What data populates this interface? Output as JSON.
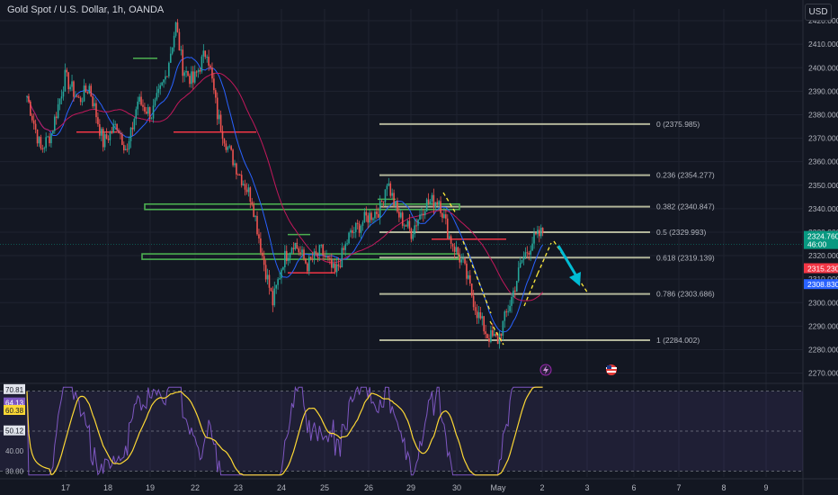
{
  "header": {
    "title": "Gold Spot / U.S. Dollar, 1h, OANDA",
    "currency": "USD"
  },
  "colors": {
    "background": "#131722",
    "grid": "#1f2330",
    "up": "#26a69a",
    "down": "#ef5350",
    "ma_blue": "#2962ff",
    "ma_red": "#c2185b",
    "fib": "#b2b59a",
    "zone": "#4caf50",
    "resistance": "#f23645",
    "rsi": "#7e57c2",
    "rsi_ma": "#fdd835",
    "projection": "#00bcd4"
  },
  "chart_data": [
    {
      "type": "candlestick",
      "title": "Gold Spot / U.S. Dollar, 1h, OANDA",
      "x_ticks": [
        "17",
        "18",
        "19",
        "22",
        "23",
        "24",
        "25",
        "26",
        "29",
        "30",
        "May",
        "2",
        "3",
        "6",
        "7",
        "8",
        "9"
      ],
      "y_ticks": [
        "2270.000",
        "2280.000",
        "2290.000",
        "2300.000",
        "2310.000",
        "2320.000",
        "2330.000",
        "2340.000",
        "2350.000",
        "2360.000",
        "2370.000",
        "2380.000",
        "2390.000",
        "2400.000",
        "2410.000",
        "2420.000"
      ],
      "ylim": [
        2266,
        2425
      ],
      "price_path": [
        [
          0,
          2388
        ],
        [
          8,
          2365
        ],
        [
          14,
          2372
        ],
        [
          22,
          2396
        ],
        [
          30,
          2386
        ],
        [
          36,
          2392
        ],
        [
          44,
          2368
        ],
        [
          52,
          2376
        ],
        [
          58,
          2364
        ],
        [
          64,
          2386
        ],
        [
          72,
          2380
        ],
        [
          80,
          2396
        ],
        [
          86,
          2418
        ],
        [
          90,
          2400
        ],
        [
          96,
          2394
        ],
        [
          104,
          2408
        ],
        [
          110,
          2380
        ],
        [
          116,
          2366
        ],
        [
          122,
          2356
        ],
        [
          130,
          2344
        ],
        [
          136,
          2320
        ],
        [
          142,
          2300
        ],
        [
          148,
          2318
        ],
        [
          154,
          2326
        ],
        [
          162,
          2316
        ],
        [
          170,
          2322
        ],
        [
          178,
          2312
        ],
        [
          186,
          2328
        ],
        [
          196,
          2336
        ],
        [
          204,
          2340
        ],
        [
          208,
          2352
        ],
        [
          214,
          2338
        ],
        [
          222,
          2330
        ],
        [
          230,
          2342
        ],
        [
          238,
          2344
        ],
        [
          244,
          2328
        ],
        [
          252,
          2316
        ],
        [
          260,
          2296
        ],
        [
          266,
          2286
        ],
        [
          272,
          2284
        ],
        [
          280,
          2302
        ],
        [
          286,
          2318
        ],
        [
          292,
          2326
        ],
        [
          298,
          2330
        ]
      ],
      "last_index": 298,
      "price_labels": [
        {
          "text": "2324.760",
          "sub": "46:00",
          "value": 2324.76,
          "color": "#089981"
        },
        {
          "text": "2315.230",
          "value": 2315.23,
          "color": "#f23645"
        },
        {
          "text": "2308.830",
          "value": 2308.83,
          "color": "#2962ff"
        }
      ],
      "fibonacci": [
        {
          "label": "0 (2375.985)",
          "value": 2375.985
        },
        {
          "label": "0.236 (2354.277)",
          "value": 2354.277
        },
        {
          "label": "0.382 (2340.847)",
          "value": 2340.847
        },
        {
          "label": "0.5 (2329.993)",
          "value": 2329.993
        },
        {
          "label": "0.618 (2319.139)",
          "value": 2319.139
        },
        {
          "label": "0.786 (2303.686)",
          "value": 2303.686
        },
        {
          "label": "1 (2284.002)",
          "value": 2284.002
        }
      ],
      "zones": [
        {
          "value": 2340.8
        },
        {
          "value": 2319.6
        }
      ],
      "resistance_lines": [
        {
          "value": 2372.6
        },
        {
          "value": 2312.7
        },
        {
          "value": 2327.0
        }
      ],
      "event_icons": [
        {
          "icon": "lightning-icon",
          "index": 282
        },
        {
          "icon": "us-flag-icon",
          "index": 320
        }
      ]
    },
    {
      "type": "line",
      "title": "RSI",
      "levels": [
        70,
        50,
        30
      ],
      "value_labels": [
        {
          "text": "70.81",
          "value": 70.81,
          "color": "#131722",
          "bg": "#e0e3eb"
        },
        {
          "text": "64.13",
          "value": 64.13,
          "color": "#ffffff",
          "bg": "#7e57c2"
        },
        {
          "text": "60.38",
          "value": 60.38,
          "color": "#131722",
          "bg": "#fdd835"
        },
        {
          "text": "50.12",
          "value": 50.12,
          "color": "#131722",
          "bg": "#e0e3eb"
        },
        {
          "text": "40.00",
          "value": 40.0
        },
        {
          "text": "30.00",
          "value": 30.0
        }
      ],
      "ylim": [
        27,
        73
      ]
    }
  ]
}
